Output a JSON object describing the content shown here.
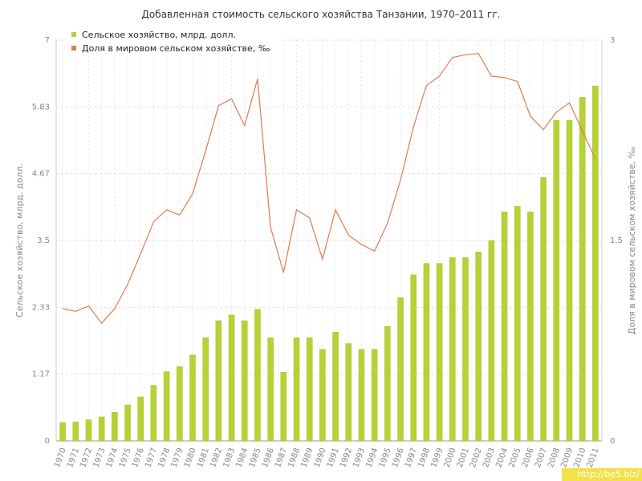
{
  "chart_data": {
    "type": "bar+line",
    "title": "Добавленная стоимость сельского хозяйства Танзании, 1970–2011 гг.",
    "ylabel_left": "Сельское хозяйство, млрд. долл.",
    "ylabel_right": "Доля в мировом сельском хозяйстве, ‰",
    "left_ticks": [
      "0",
      "1.17",
      "2.33",
      "3.5",
      "4.67",
      "5.83",
      "7"
    ],
    "left_range": [
      0,
      7
    ],
    "right_ticks": [
      "0",
      "1.5",
      "3"
    ],
    "right_range": [
      0,
      3
    ],
    "grid": true,
    "legend_position": "top-left",
    "categories": [
      "1970",
      "1971",
      "1972",
      "1973",
      "1974",
      "1975",
      "1976",
      "1977",
      "1978",
      "1979",
      "1980",
      "1981",
      "1982",
      "1983",
      "1984",
      "1985",
      "1986",
      "1987",
      "1988",
      "1989",
      "1990",
      "1991",
      "1992",
      "1993",
      "1994",
      "1995",
      "1996",
      "1997",
      "1998",
      "1999",
      "2000",
      "2001",
      "2002",
      "2003",
      "2004",
      "2005",
      "2006",
      "2007",
      "2008",
      "2009",
      "2010",
      "2011"
    ],
    "series": [
      {
        "name": "Сельское хозяйство, млрд. долл.",
        "kind": "bar",
        "axis": "left",
        "color": "#b5d334",
        "values": [
          0.32,
          0.33,
          0.37,
          0.42,
          0.5,
          0.63,
          0.77,
          0.97,
          1.21,
          1.3,
          1.5,
          1.8,
          2.1,
          2.2,
          2.1,
          2.3,
          1.8,
          1.2,
          1.8,
          1.8,
          1.6,
          1.9,
          1.7,
          1.6,
          1.6,
          2.0,
          2.5,
          2.9,
          3.1,
          3.1,
          3.2,
          3.2,
          3.3,
          3.5,
          4.0,
          4.1,
          4.0,
          4.6,
          5.6,
          5.6,
          6.0,
          6.2
        ]
      },
      {
        "name": "Доля в мировом сельском хозяйстве, ‰",
        "kind": "line",
        "axis": "right",
        "color": "#e07a50",
        "values": [
          0.99,
          0.97,
          1.01,
          0.88,
          0.99,
          1.17,
          1.4,
          1.64,
          1.73,
          1.69,
          1.85,
          2.17,
          2.51,
          2.56,
          2.36,
          2.71,
          1.6,
          1.26,
          1.73,
          1.67,
          1.36,
          1.73,
          1.54,
          1.47,
          1.42,
          1.63,
          1.95,
          2.35,
          2.66,
          2.73,
          2.87,
          2.89,
          2.9,
          2.73,
          2.72,
          2.69,
          2.43,
          2.33,
          2.46,
          2.53,
          2.32,
          2.11
        ]
      }
    ]
  },
  "watermark": "http://be5.biz/"
}
